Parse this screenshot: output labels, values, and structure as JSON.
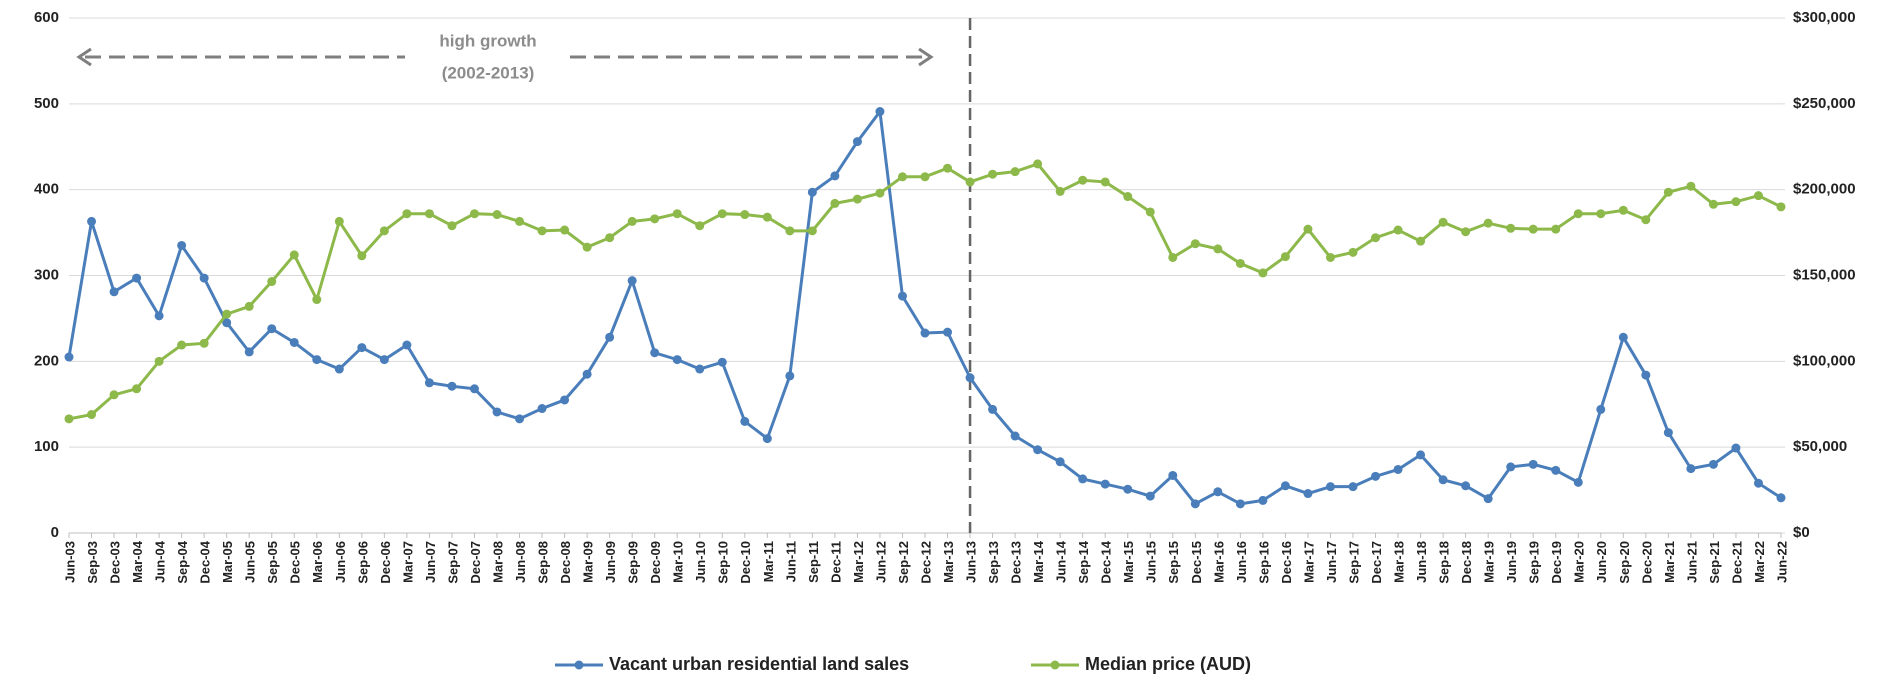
{
  "chart_data": {
    "type": "line",
    "annotation": [
      "high growth",
      "(2002-2013)"
    ],
    "categories": [
      "Jun-03",
      "Sep-03",
      "Dec-03",
      "Mar-04",
      "Jun-04",
      "Sep-04",
      "Dec-04",
      "Mar-05",
      "Jun-05",
      "Sep-05",
      "Dec-05",
      "Mar-06",
      "Jun-06",
      "Sep-06",
      "Dec-06",
      "Mar-07",
      "Jun-07",
      "Sep-07",
      "Dec-07",
      "Mar-08",
      "Jun-08",
      "Sep-08",
      "Dec-08",
      "Mar-09",
      "Jun-09",
      "Sep-09",
      "Dec-09",
      "Mar-10",
      "Jun-10",
      "Sep-10",
      "Dec-10",
      "Mar-11",
      "Jun-11",
      "Sep-11",
      "Dec-11",
      "Mar-12",
      "Jun-12",
      "Sep-12",
      "Dec-12",
      "Mar-13",
      "Jun-13",
      "Sep-13",
      "Dec-13",
      "Mar-14",
      "Jun-14",
      "Sep-14",
      "Dec-14",
      "Mar-15",
      "Jun-15",
      "Sep-15",
      "Dec-15",
      "Mar-16",
      "Jun-16",
      "Sep-16",
      "Dec-16",
      "Mar-17",
      "Jun-17",
      "Sep-17",
      "Dec-17",
      "Mar-18",
      "Jun-18",
      "Sep-18",
      "Dec-18",
      "Mar-19",
      "Jun-19",
      "Sep-19",
      "Dec-19",
      "Mar-20",
      "Jun-20",
      "Sep-20",
      "Dec-20",
      "Mar-21",
      "Jun-21",
      "Sep-21",
      "Dec-21",
      "Mar-22",
      "Jun-22"
    ],
    "series": [
      {
        "name": "Vacant urban residential land sales",
        "color": "#4a7ebb",
        "values": [
          205,
          363,
          281,
          297,
          253,
          335,
          297,
          245,
          211,
          238,
          222,
          202,
          191,
          216,
          202,
          219,
          175,
          171,
          168,
          141,
          133,
          145,
          155,
          185,
          228,
          294,
          210,
          202,
          191,
          199,
          130,
          110,
          183,
          397,
          416,
          456,
          491,
          276,
          233,
          234,
          181,
          144,
          113,
          97,
          83,
          63,
          57,
          51,
          43,
          67,
          34,
          48,
          34,
          38,
          55,
          46,
          54,
          54,
          66,
          74,
          91,
          62,
          55,
          40,
          77,
          80,
          73,
          59,
          144,
          228,
          184,
          117,
          75,
          80,
          99,
          58,
          41
        ]
      },
      {
        "name": "Median price (AUD)",
        "color": "#8db84a",
        "axis": "y2",
        "values": [
          66500,
          69000,
          80500,
          84000,
          100000,
          109500,
          110500,
          127500,
          132000,
          146500,
          162000,
          136000,
          181500,
          161500,
          176000,
          186000,
          186000,
          179000,
          186000,
          185500,
          181500,
          176000,
          176500,
          166500,
          172000,
          181500,
          183000,
          186000,
          179000,
          186000,
          185500,
          184000,
          176000,
          176000,
          192000,
          194500,
          198000,
          207500,
          207500,
          212500,
          204500,
          209000,
          210500,
          215000,
          199000,
          205500,
          204500,
          196000,
          187000,
          160500,
          168500,
          165500,
          157000,
          151500,
          161000,
          177000,
          160500,
          163500,
          172000,
          176500,
          170000,
          181000,
          175500,
          180500,
          177500,
          177000,
          177000,
          186000,
          186000,
          188000,
          182500,
          198500,
          202000,
          191500,
          193000,
          196500,
          190000
        ]
      }
    ],
    "ylim": [
      0,
      600
    ],
    "yticks": [
      0,
      100,
      200,
      300,
      400,
      500,
      600
    ],
    "y2lim": [
      0,
      300000
    ],
    "y2ticks": [
      {
        "value": 0,
        "label": "$0"
      },
      {
        "value": 50000,
        "label": "$50,000"
      },
      {
        "value": 100000,
        "label": "$100,000"
      },
      {
        "value": 150000,
        "label": "$150,000"
      },
      {
        "value": 200000,
        "label": "$200,000"
      },
      {
        "value": 250000,
        "label": "$250,000"
      },
      {
        "value": 300000,
        "label": "$300,000"
      }
    ],
    "grid": true
  }
}
